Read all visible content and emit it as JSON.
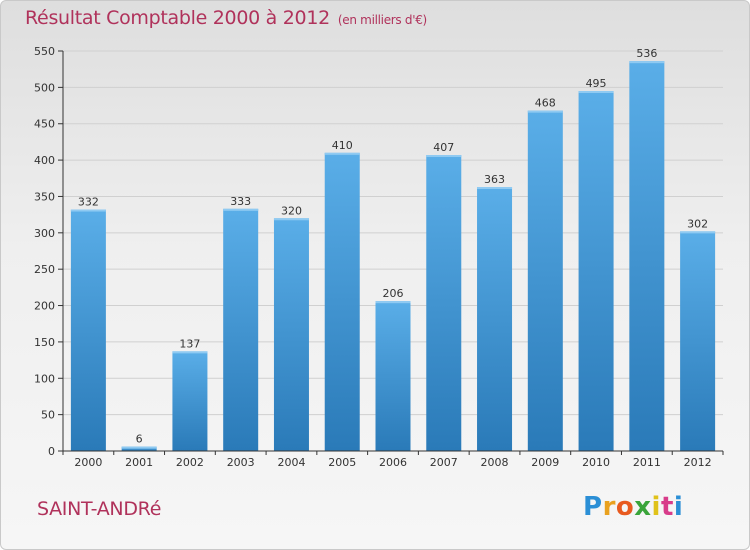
{
  "title": "Résultat Comptable 2000 à 2012",
  "subtitle": "(en milliers d'€)",
  "place_name": "SAINT-ANDRé",
  "logo": {
    "letters": [
      "P",
      "r",
      "o",
      "x",
      "i",
      "t",
      "i"
    ],
    "colors": [
      "#2b8fd6",
      "#e9a11f",
      "#e85a1f",
      "#3aa43a",
      "#e0c21a",
      "#d83c8a",
      "#2b8fd6"
    ]
  },
  "colors": {
    "bar_top": "#5aaee8",
    "bar_bottom": "#2a7ab8",
    "grid": "#d0d0d0",
    "axis": "#333333"
  },
  "chart_data": {
    "type": "bar",
    "title": "Résultat Comptable 2000 à 2012",
    "subtitle": "(en milliers d'€)",
    "categories": [
      "2000",
      "2001",
      "2002",
      "2003",
      "2004",
      "2005",
      "2006",
      "2007",
      "2008",
      "2009",
      "2010",
      "2011",
      "2012"
    ],
    "values": [
      332,
      6,
      137,
      333,
      320,
      410,
      206,
      407,
      363,
      468,
      495,
      536,
      302
    ],
    "ylim": [
      0,
      550
    ],
    "yticks": [
      0,
      50,
      100,
      150,
      200,
      250,
      300,
      350,
      400,
      450,
      500,
      550
    ],
    "grid": true,
    "data_labels": true
  }
}
